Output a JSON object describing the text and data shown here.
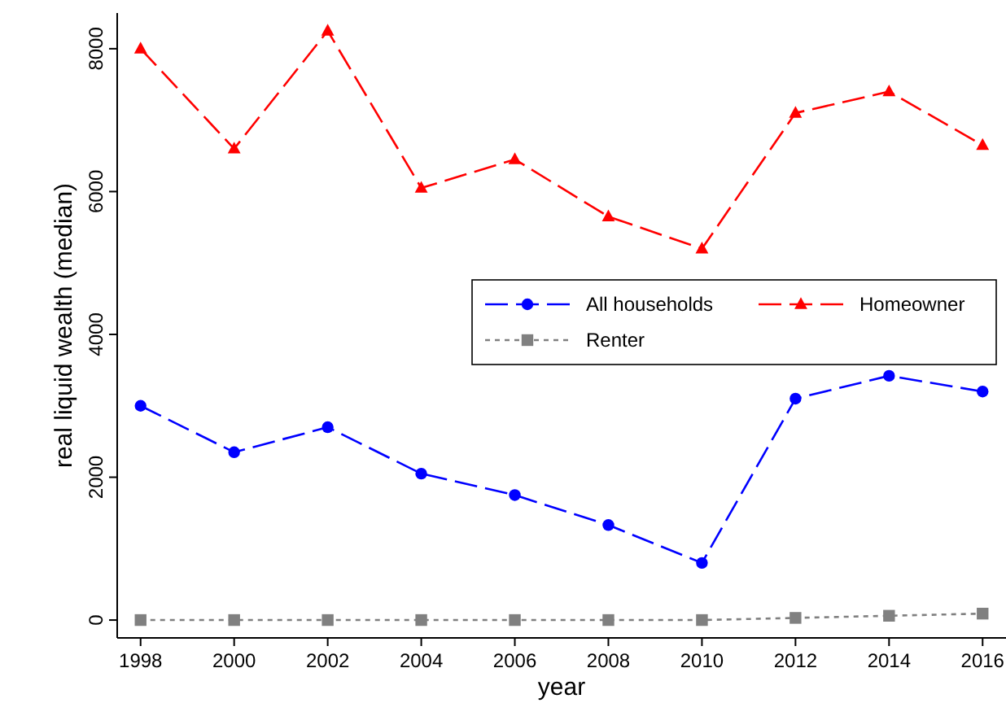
{
  "chart_data": {
    "type": "line",
    "xlabel": "year",
    "ylabel": "real liquid wealth (median)",
    "x": [
      1998,
      2000,
      2002,
      2004,
      2006,
      2008,
      2010,
      2012,
      2014,
      2016
    ],
    "xlim": [
      1997.5,
      2016.5
    ],
    "xticks": [
      1998,
      2000,
      2002,
      2004,
      2006,
      2008,
      2010,
      2012,
      2014,
      2016
    ],
    "ylim": [
      -250,
      8500
    ],
    "yticks": [
      0,
      2000,
      4000,
      6000,
      8000
    ],
    "grid": false,
    "legend": "right",
    "series": [
      {
        "name": "All households",
        "color": "#0000ff",
        "marker": "circle",
        "line_style": "dashed",
        "values": [
          3000,
          2350,
          2700,
          2050,
          1750,
          1330,
          800,
          3100,
          3420,
          3200
        ]
      },
      {
        "name": "Homeowner",
        "color": "#ff0000",
        "marker": "triangle",
        "line_style": "dashed",
        "values": [
          8000,
          6600,
          8250,
          6050,
          6450,
          5650,
          5200,
          7100,
          7400,
          6650
        ]
      },
      {
        "name": "Renter",
        "color": "#808080",
        "marker": "square",
        "line_style": "dotted",
        "values": [
          0,
          0,
          0,
          0,
          0,
          0,
          0,
          30,
          60,
          90
        ]
      }
    ]
  }
}
